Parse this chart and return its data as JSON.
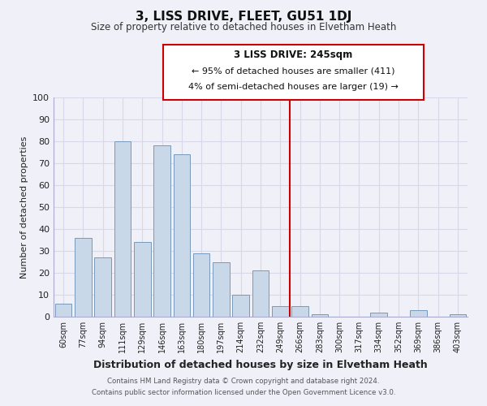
{
  "title": "3, LISS DRIVE, FLEET, GU51 1DJ",
  "subtitle": "Size of property relative to detached houses in Elvetham Heath",
  "xlabel": "Distribution of detached houses by size in Elvetham Heath",
  "ylabel": "Number of detached properties",
  "bar_labels": [
    "60sqm",
    "77sqm",
    "94sqm",
    "111sqm",
    "129sqm",
    "146sqm",
    "163sqm",
    "180sqm",
    "197sqm",
    "214sqm",
    "232sqm",
    "249sqm",
    "266sqm",
    "283sqm",
    "300sqm",
    "317sqm",
    "334sqm",
    "352sqm",
    "369sqm",
    "386sqm",
    "403sqm"
  ],
  "bar_values": [
    6,
    36,
    27,
    80,
    34,
    78,
    74,
    29,
    25,
    10,
    21,
    5,
    5,
    1,
    0,
    0,
    2,
    0,
    3,
    0,
    1
  ],
  "bar_color": "#c8d8e8",
  "bar_edge_color": "#7799bb",
  "vline_x_index": 11.5,
  "vline_color": "#cc0000",
  "ylim": [
    0,
    100
  ],
  "yticks": [
    0,
    10,
    20,
    30,
    40,
    50,
    60,
    70,
    80,
    90,
    100
  ],
  "annotation_title": "3 LISS DRIVE: 245sqm",
  "annotation_line1": "← 95% of detached houses are smaller (411)",
  "annotation_line2": "4% of semi-detached houses are larger (19) →",
  "footer_line1": "Contains HM Land Registry data © Crown copyright and database right 2024.",
  "footer_line2": "Contains public sector information licensed under the Open Government Licence v3.0.",
  "background_color": "#f0f0f8",
  "grid_color": "#d8d8e8"
}
